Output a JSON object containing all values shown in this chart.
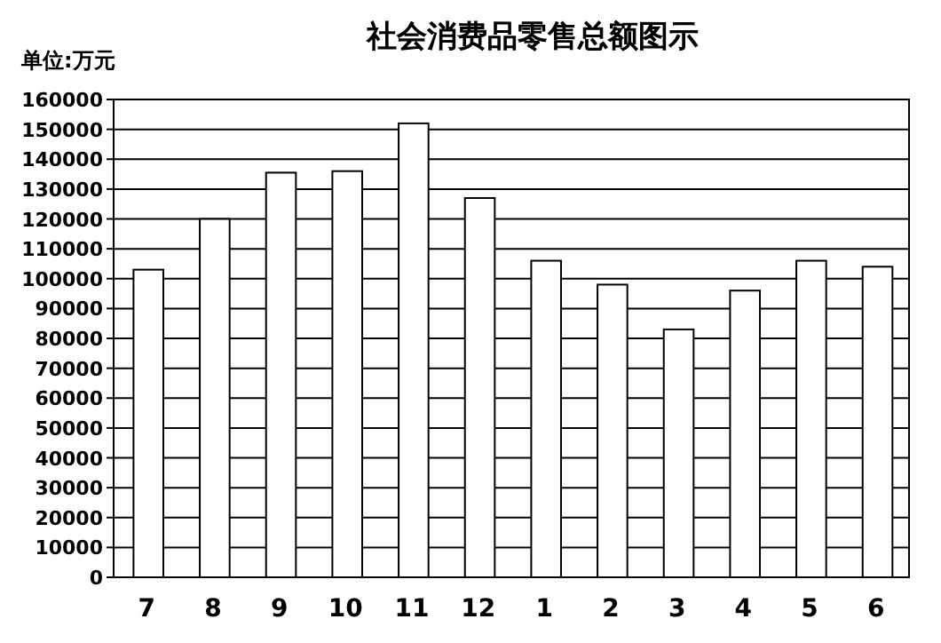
{
  "chart_data": {
    "type": "bar",
    "title": "社会消费品零售总额图示",
    "ylabel": "单位:万元",
    "categories": [
      "7",
      "8",
      "9",
      "10",
      "11",
      "12",
      "1",
      "2",
      "3",
      "4",
      "5",
      "6"
    ],
    "values": [
      103000,
      120000,
      135500,
      136000,
      152000,
      127000,
      106000,
      98000,
      83000,
      96000,
      106000,
      104000
    ],
    "color": "#ffffff",
    "ylim": [
      0,
      160000
    ],
    "yticks": [
      0,
      10000,
      20000,
      30000,
      40000,
      50000,
      60000,
      70000,
      80000,
      90000,
      100000,
      110000,
      120000,
      130000,
      140000,
      150000,
      160000
    ],
    "grid": "y"
  }
}
